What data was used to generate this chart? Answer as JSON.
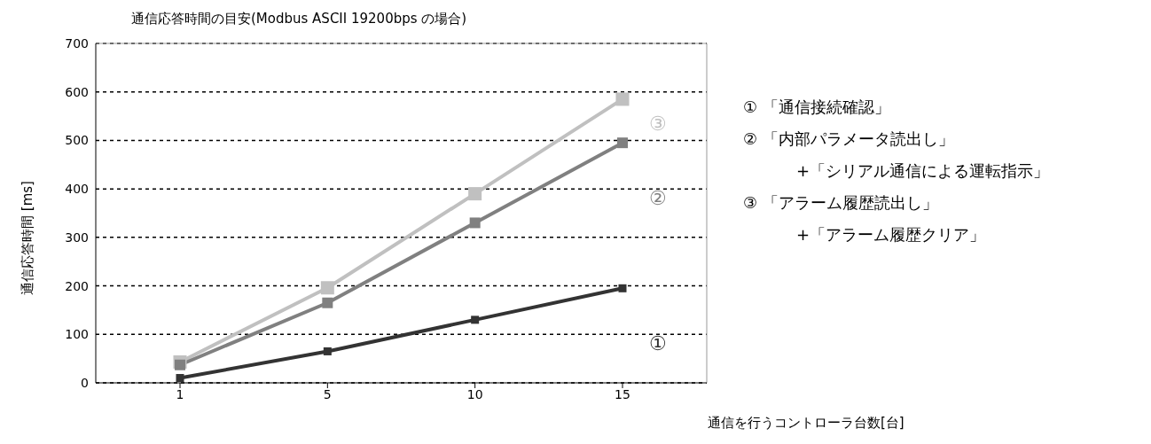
{
  "chart_data": {
    "type": "line",
    "title": "通信応答時間の目安(Modbus ASCII 19200bps の場合)",
    "xlabel": "通信を行うコントローラ台数[台]",
    "ylabel": "通信応答時間 [ms]",
    "categories": [
      "1",
      "5",
      "10",
      "15"
    ],
    "series": [
      {
        "name": "①",
        "color": "#333333",
        "values": [
          10,
          65,
          130,
          195
        ]
      },
      {
        "name": "②",
        "color": "#808080",
        "values": [
          37,
          165,
          330,
          495
        ]
      },
      {
        "name": "③",
        "color": "#c0c0c0",
        "values": [
          43,
          196,
          390,
          585
        ]
      }
    ],
    "ylim": [
      0,
      700
    ],
    "yticks": [
      0,
      100,
      200,
      300,
      400,
      500,
      600,
      700
    ],
    "grid": "y",
    "marker": "square",
    "line_style": "solid",
    "annotations": [
      "① 「通信接続確認」",
      "② 「内部パラメータ読出し」",
      "+「シリアル通信による運転指示」",
      "③ 「アラーム履歴読出し」",
      "+「アラーム履歴クリア」"
    ]
  }
}
